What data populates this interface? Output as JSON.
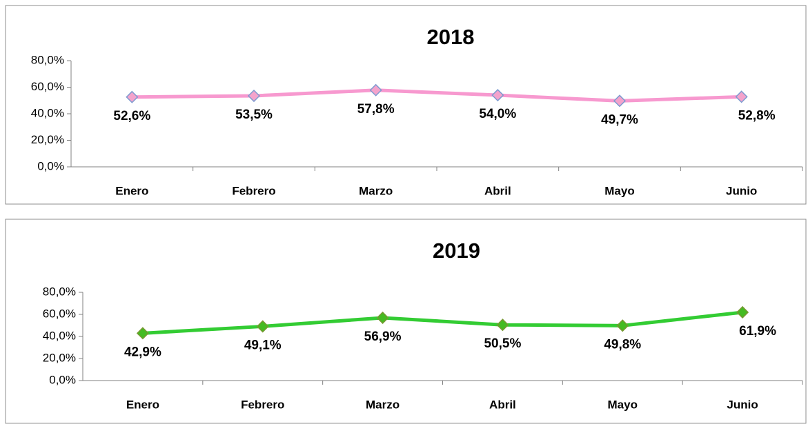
{
  "chart_data": [
    {
      "type": "line",
      "title": "2018",
      "categories": [
        "Enero",
        "Febrero",
        "Marzo",
        "Abril",
        "Mayo",
        "Junio"
      ],
      "values": [
        52.6,
        53.5,
        57.8,
        54.0,
        49.7,
        52.8
      ],
      "value_labels": [
        "52,6%",
        "53,5%",
        "57,8%",
        "54,0%",
        "49,7%",
        "52,8%"
      ],
      "color": "#f799cf",
      "marker_color": "#f4a3cc",
      "marker_edge_color": "#7d9bd0",
      "ylim": [
        0,
        80
      ],
      "yticks": [
        {
          "value": 0,
          "label": "0,0%"
        },
        {
          "value": 20,
          "label": "20,0%"
        },
        {
          "value": 40,
          "label": "40,0%"
        },
        {
          "value": 60,
          "label": "60,0%"
        },
        {
          "value": 80,
          "label": "80,0%"
        }
      ]
    },
    {
      "type": "line",
      "title": "2019",
      "categories": [
        "Enero",
        "Febrero",
        "Marzo",
        "Abril",
        "Mayo",
        "Junio"
      ],
      "values": [
        42.9,
        49.1,
        56.9,
        50.5,
        49.8,
        61.9
      ],
      "value_labels": [
        "42,9%",
        "49,1%",
        "56,9%",
        "50,5%",
        "49,8%",
        "61,9%"
      ],
      "color": "#33cc33",
      "marker_color": "#44bb22",
      "marker_edge_color": "#779933",
      "ylim": [
        0,
        80
      ],
      "yticks": [
        {
          "value": 0,
          "label": "0,0%"
        },
        {
          "value": 20,
          "label": "20,0%"
        },
        {
          "value": 40,
          "label": "40,0%"
        },
        {
          "value": 60,
          "label": "60,0%"
        },
        {
          "value": 80,
          "label": "80,0%"
        }
      ]
    }
  ]
}
